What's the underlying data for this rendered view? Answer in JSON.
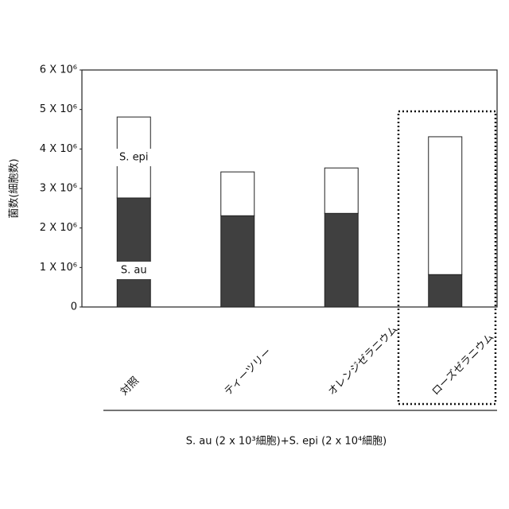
{
  "chart_data": {
    "type": "stacked-bar",
    "categories": [
      "対照",
      "ティーツリー",
      "オレンジゼラニウム",
      "ローズゼラニウム"
    ],
    "series": [
      {
        "name": "S. au",
        "color": "#404040",
        "values": [
          2760000,
          2310000,
          2370000,
          820000
        ]
      },
      {
        "name": "S. epi",
        "color": "#ffffff",
        "values": [
          2050000,
          1110000,
          1150000,
          3490000
        ]
      }
    ],
    "ylabel": "菌数(細胞数)",
    "xlabel": "S. au (2 x 10³細胞)+S. epi (2 x 10⁴細胞)",
    "ylim": [
      0,
      6000000
    ],
    "yticks": [
      0,
      {
        "value": 1000000,
        "label": "1 X 10⁶"
      },
      {
        "value": 2000000,
        "label": "2 X 10⁶"
      },
      {
        "value": 3000000,
        "label": "3 X 10⁶"
      },
      {
        "value": 4000000,
        "label": "4 X 10⁶"
      },
      {
        "value": 5000000,
        "label": "5 X 10⁶"
      },
      {
        "value": 6000000,
        "label": "6 X 10⁶"
      }
    ]
  }
}
